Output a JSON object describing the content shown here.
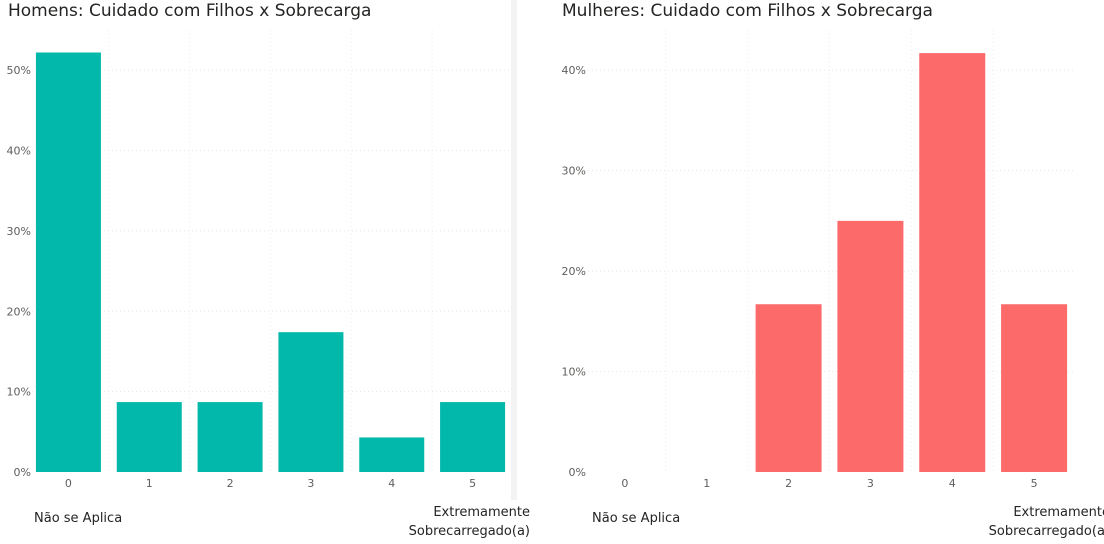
{
  "chart_data": [
    {
      "type": "bar",
      "title": "Homens: Cuidado com Filhos x Sobrecarga",
      "categories": [
        "0",
        "1",
        "2",
        "3",
        "4",
        "5"
      ],
      "values": [
        52.2,
        8.7,
        8.7,
        17.4,
        4.3,
        8.7
      ],
      "unit": "%",
      "ylim": [
        0,
        55
      ],
      "yticks": [
        "0%",
        "10%",
        "20%",
        "30%",
        "40%",
        "50%"
      ],
      "ytick_values": [
        0,
        10,
        20,
        30,
        40,
        50
      ],
      "color": "#01B8AA",
      "grid": true,
      "scale_labels": {
        "low": "Não se Aplica",
        "high": "Extremamente Sobrecarregado(a)"
      }
    },
    {
      "type": "bar",
      "title": "Mulheres: Cuidado com Filhos x Sobrecarga",
      "categories": [
        "0",
        "1",
        "2",
        "3",
        "4",
        "5"
      ],
      "values": [
        0,
        0,
        16.7,
        25.0,
        41.7,
        16.7
      ],
      "unit": "%",
      "ylim": [
        0,
        44
      ],
      "yticks": [
        "0%",
        "10%",
        "20%",
        "30%",
        "40%"
      ],
      "ytick_values": [
        0,
        10,
        20,
        30,
        40
      ],
      "color": "#FD6A6A",
      "grid": true,
      "scale_labels": {
        "low": "Não se Aplica",
        "high": "Extremamente Sobrecarregado(a)"
      }
    }
  ]
}
